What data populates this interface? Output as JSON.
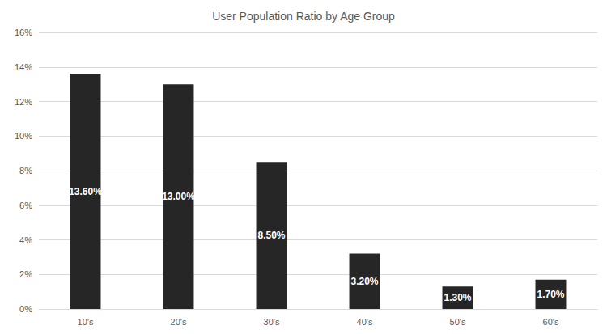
{
  "chart_data": {
    "type": "bar",
    "title": "User Population Ratio by Age Group",
    "categories": [
      "10's",
      "20's",
      "30's",
      "40's",
      "50's",
      "60's"
    ],
    "values": [
      13.6,
      13.0,
      8.5,
      3.2,
      1.3,
      1.7
    ],
    "value_labels": [
      "13.60%",
      "13.00%",
      "8.50%",
      "3.20%",
      "1.30%",
      "1.70%"
    ],
    "color": "#262626",
    "ylim": [
      0,
      16
    ],
    "yticks": [
      {
        "value": 0,
        "label": "0%"
      },
      {
        "value": 2,
        "label": "2%"
      },
      {
        "value": 4,
        "label": "4%"
      },
      {
        "value": 6,
        "label": "6%"
      },
      {
        "value": 8,
        "label": "8%"
      },
      {
        "value": 10,
        "label": "10%"
      },
      {
        "value": 12,
        "label": "12%"
      },
      {
        "value": 14,
        "label": "14%"
      },
      {
        "value": 16,
        "label": "16%"
      }
    ],
    "grid": true,
    "data_labels": true
  }
}
